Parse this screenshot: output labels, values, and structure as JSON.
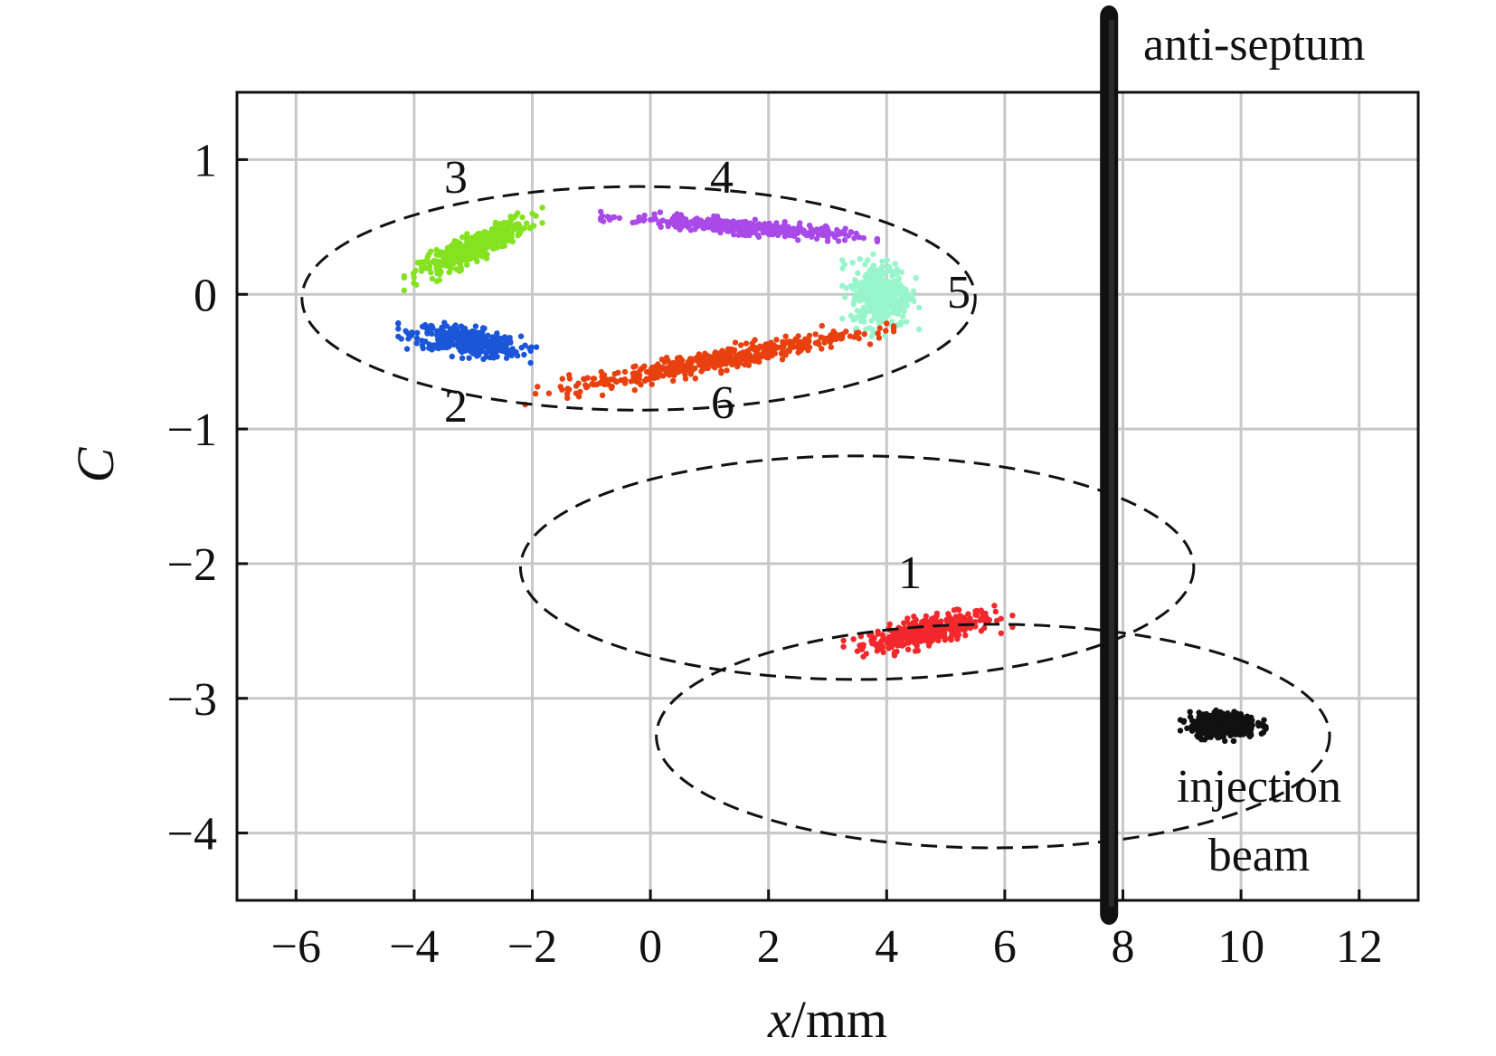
{
  "chart_data": {
    "type": "scatter",
    "title": "",
    "xlabel_italic": "x",
    "xlabel_unit": "/mm",
    "ylabel": "C",
    "xlim": [
      -7,
      13
    ],
    "ylim": [
      -4.5,
      1.5
    ],
    "x_ticks": [
      -6,
      -4,
      -2,
      0,
      2,
      4,
      6,
      8,
      10,
      12
    ],
    "y_ticks": [
      1,
      0,
      -1,
      -2,
      -3,
      -4
    ],
    "grid": true,
    "clusters": [
      {
        "label": "1",
        "cx": 4.7,
        "cy": -2.5,
        "sx": 0.55,
        "sy": 0.05,
        "slope": 0.09,
        "n": 380,
        "color": "#f2282d"
      },
      {
        "label": "2",
        "cx": -3.1,
        "cy": -0.35,
        "sx": 0.45,
        "sy": 0.05,
        "slope": -0.07,
        "n": 380,
        "color": "#1c56d8"
      },
      {
        "label": "3",
        "cx": -3.0,
        "cy": 0.35,
        "sx": 0.45,
        "sy": 0.05,
        "slope": 0.2,
        "n": 380,
        "color": "#84e21f"
      },
      {
        "label": "4",
        "cx": 1.5,
        "cy": 0.5,
        "sx": 0.9,
        "sy": 0.025,
        "slope": -0.035,
        "n": 420,
        "color": "#a94ae8"
      },
      {
        "label": "5",
        "cx": 3.9,
        "cy": 0.0,
        "sx": 0.25,
        "sy": 0.12,
        "slope": 0.0,
        "n": 380,
        "color": "#98f5cb"
      },
      {
        "label": "6",
        "cx": 1.0,
        "cy": -0.5,
        "sx": 1.2,
        "sy": 0.04,
        "slope": 0.085,
        "n": 450,
        "color": "#e8400f"
      },
      {
        "label": "injection beam",
        "cx": 9.7,
        "cy": -3.2,
        "sx": 0.28,
        "sy": 0.045,
        "slope": 0.0,
        "n": 380,
        "color": "#111111"
      }
    ],
    "ellipses": [
      {
        "cx": -0.2,
        "cy": -0.03,
        "rx": 5.7,
        "ry": 0.83,
        "style": "dashed"
      },
      {
        "cx": 3.5,
        "cy": -2.03,
        "rx": 5.7,
        "ry": 0.83,
        "style": "dashed"
      },
      {
        "cx": 5.8,
        "cy": -3.28,
        "rx": 5.7,
        "ry": 0.83,
        "style": "dashed"
      }
    ],
    "annotations": {
      "label_1": "1",
      "label_2": "2",
      "label_3": "3",
      "label_4": "4",
      "label_5": "5",
      "label_6": "6",
      "anti_septum": "anti-septum",
      "injection_line1": "injection",
      "injection_line2": "beam"
    },
    "septum": {
      "x_range": [
        7.0,
        8.0
      ],
      "color": "#111111"
    }
  }
}
